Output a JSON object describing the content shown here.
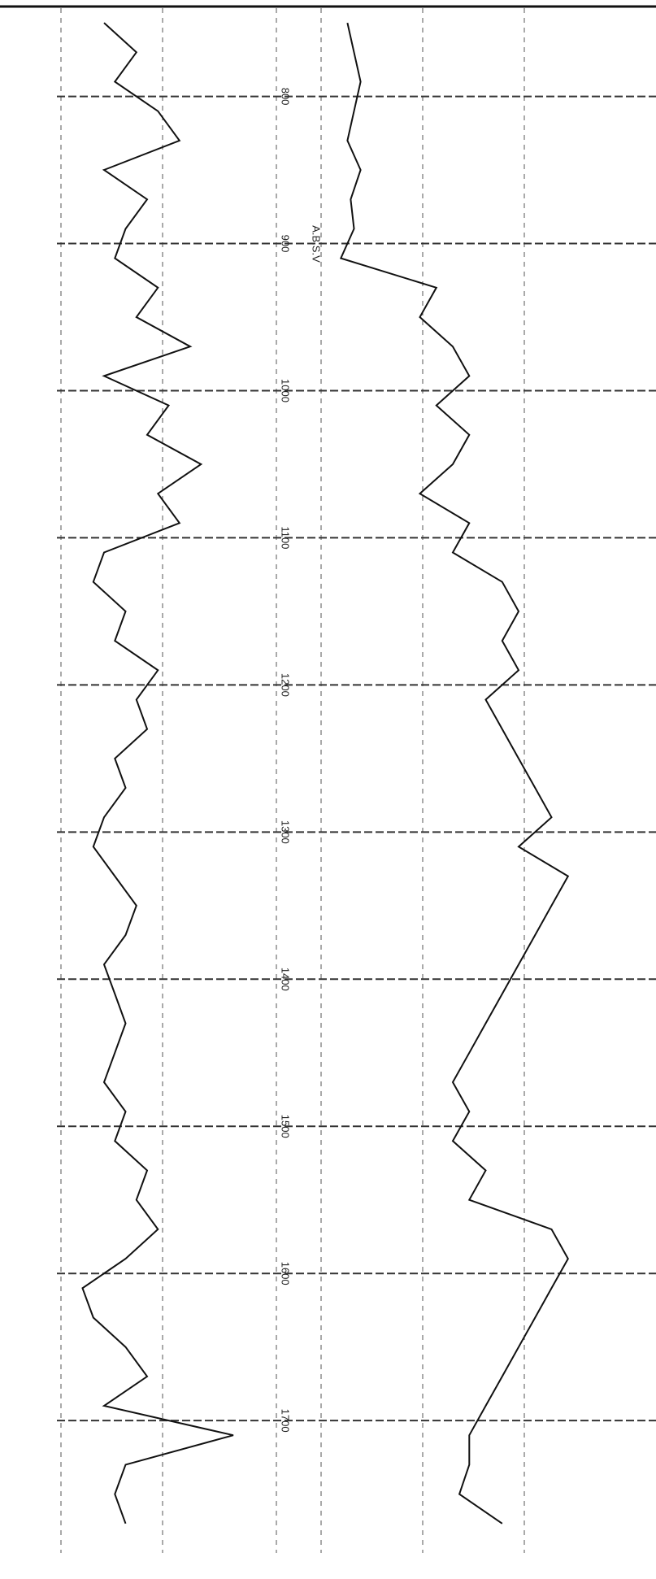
{
  "chart_data": {
    "type": "line",
    "annotation": "A.B.S.V",
    "x": [
      750,
      770,
      790,
      810,
      830,
      850,
      870,
      890,
      910,
      930,
      950,
      970,
      990,
      1010,
      1030,
      1050,
      1070,
      1090,
      1110,
      1130,
      1150,
      1170,
      1190,
      1210,
      1230,
      1250,
      1270,
      1290,
      1310,
      1330,
      1350,
      1370,
      1390,
      1410,
      1430,
      1450,
      1470,
      1490,
      1510,
      1530,
      1550,
      1570,
      1590,
      1610,
      1630,
      1650,
      1670,
      1690,
      1710,
      1730,
      1750,
      1770
    ],
    "xlim": [
      740,
      1790
    ],
    "xticks": [
      800,
      900,
      1000,
      1100,
      1200,
      1300,
      1400,
      1500,
      1600,
      1700
    ],
    "ylim": [
      0,
      100
    ],
    "grid": true,
    "series": [
      {
        "color": "#111111",
        "values": [
          20,
          35,
          25,
          45,
          55,
          20,
          40,
          30,
          25,
          45,
          35,
          60,
          20,
          50,
          40,
          65,
          45,
          55,
          20,
          15,
          30,
          25,
          45,
          35,
          40,
          25,
          30,
          20,
          15,
          25,
          35,
          30,
          20,
          25,
          30,
          25,
          20,
          30,
          25,
          40,
          35,
          45,
          30,
          10,
          15,
          30,
          40,
          20,
          80,
          30,
          25,
          30
        ]
      },
      {
        "color": "#111111",
        "values": [
          8,
          10,
          12,
          10,
          8,
          12,
          9,
          10,
          6,
          35,
          30,
          40,
          45,
          35,
          45,
          40,
          30,
          45,
          40,
          55,
          60,
          55,
          60,
          50,
          55,
          60,
          65,
          70,
          60,
          75,
          70,
          65,
          60,
          55,
          50,
          45,
          40,
          45,
          40,
          50,
          45,
          70,
          75,
          70,
          65,
          60,
          55,
          50,
          45,
          45,
          42,
          55
        ]
      }
    ]
  }
}
